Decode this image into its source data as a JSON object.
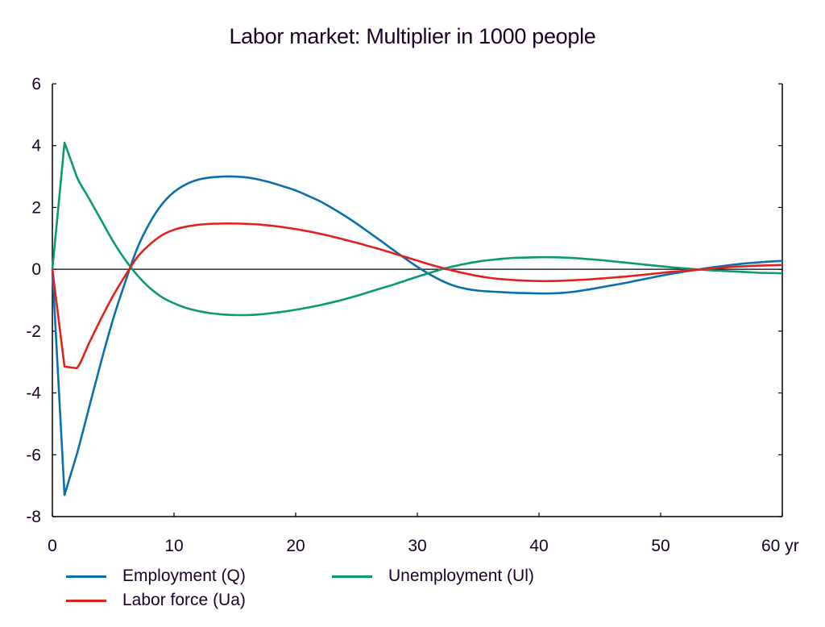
{
  "chart_data": {
    "type": "line",
    "title": "Labor market: Multiplier in 1000 people",
    "xlabel": "",
    "ylabel": "",
    "x_unit_label": "yr",
    "xlim": [
      0,
      60
    ],
    "ylim": [
      -8,
      6
    ],
    "xticks": [
      0,
      10,
      20,
      30,
      40,
      50,
      60
    ],
    "xtick_labels": [
      "0",
      "10",
      "20",
      "30",
      "40",
      "50",
      "60 yr"
    ],
    "yticks": [
      -8,
      -6,
      -4,
      -2,
      0,
      2,
      4,
      6
    ],
    "ytick_labels": [
      "-8",
      "-6",
      "-4",
      "-2",
      "0",
      "2",
      "4",
      "6"
    ],
    "grid": false,
    "legend_placement": "bottom",
    "x": [
      0,
      1,
      2,
      3,
      4,
      5,
      6,
      7,
      8,
      9,
      10,
      11,
      12,
      13,
      14,
      15,
      16,
      17,
      18,
      19,
      20,
      21,
      22,
      23,
      24,
      25,
      26,
      27,
      28,
      29,
      30,
      31,
      32,
      33,
      34,
      35,
      36,
      37,
      38,
      39,
      40,
      41,
      42,
      43,
      44,
      45,
      46,
      47,
      48,
      49,
      50,
      51,
      52,
      53,
      54,
      55,
      56,
      57,
      58,
      59,
      60
    ],
    "series": [
      {
        "name": "Employment (Q)",
        "color": "#0a6fad",
        "values": [
          0,
          -7.3,
          -6.0,
          -4.5,
          -3.0,
          -1.6,
          -0.4,
          0.7,
          1.5,
          2.1,
          2.5,
          2.75,
          2.9,
          2.97,
          3.0,
          3.0,
          2.97,
          2.9,
          2.8,
          2.68,
          2.55,
          2.38,
          2.2,
          1.98,
          1.74,
          1.48,
          1.2,
          0.92,
          0.63,
          0.35,
          0.08,
          -0.16,
          -0.37,
          -0.53,
          -0.63,
          -0.69,
          -0.72,
          -0.74,
          -0.76,
          -0.77,
          -0.78,
          -0.78,
          -0.76,
          -0.72,
          -0.66,
          -0.59,
          -0.52,
          -0.45,
          -0.37,
          -0.29,
          -0.21,
          -0.14,
          -0.07,
          -0.01,
          0.05,
          0.1,
          0.15,
          0.19,
          0.22,
          0.25,
          0.27
        ]
      },
      {
        "name": "Unemployment (Ul)",
        "color": "#0a9a70",
        "values": [
          0,
          4.1,
          3.0,
          2.3,
          1.6,
          0.9,
          0.3,
          -0.2,
          -0.6,
          -0.9,
          -1.1,
          -1.25,
          -1.35,
          -1.42,
          -1.46,
          -1.48,
          -1.48,
          -1.46,
          -1.42,
          -1.37,
          -1.31,
          -1.24,
          -1.16,
          -1.07,
          -0.97,
          -0.86,
          -0.74,
          -0.62,
          -0.5,
          -0.37,
          -0.24,
          -0.12,
          0.0,
          0.1,
          0.18,
          0.25,
          0.3,
          0.34,
          0.37,
          0.38,
          0.39,
          0.39,
          0.38,
          0.36,
          0.33,
          0.3,
          0.26,
          0.22,
          0.18,
          0.14,
          0.1,
          0.06,
          0.03,
          0.0,
          -0.03,
          -0.05,
          -0.07,
          -0.09,
          -0.11,
          -0.12,
          -0.13
        ]
      },
      {
        "name": "Labor force (Ua)",
        "color": "#e3211c",
        "values": [
          0,
          -3.15,
          -3.2,
          -2.4,
          -1.6,
          -0.85,
          -0.2,
          0.4,
          0.8,
          1.1,
          1.28,
          1.38,
          1.44,
          1.47,
          1.48,
          1.48,
          1.47,
          1.45,
          1.41,
          1.36,
          1.3,
          1.23,
          1.15,
          1.06,
          0.96,
          0.86,
          0.75,
          0.64,
          0.52,
          0.4,
          0.28,
          0.16,
          0.05,
          -0.05,
          -0.14,
          -0.22,
          -0.28,
          -0.32,
          -0.35,
          -0.37,
          -0.38,
          -0.38,
          -0.37,
          -0.35,
          -0.33,
          -0.3,
          -0.27,
          -0.24,
          -0.2,
          -0.16,
          -0.12,
          -0.08,
          -0.05,
          -0.02,
          0.02,
          0.05,
          0.08,
          0.1,
          0.12,
          0.13,
          0.14
        ]
      }
    ],
    "legend": [
      {
        "label": "Employment (Q)",
        "color": "#0a6fad"
      },
      {
        "label": "Unemployment (Ul)",
        "color": "#0a9a70"
      },
      {
        "label": "Labor force (Ua)",
        "color": "#e3211c"
      }
    ]
  }
}
